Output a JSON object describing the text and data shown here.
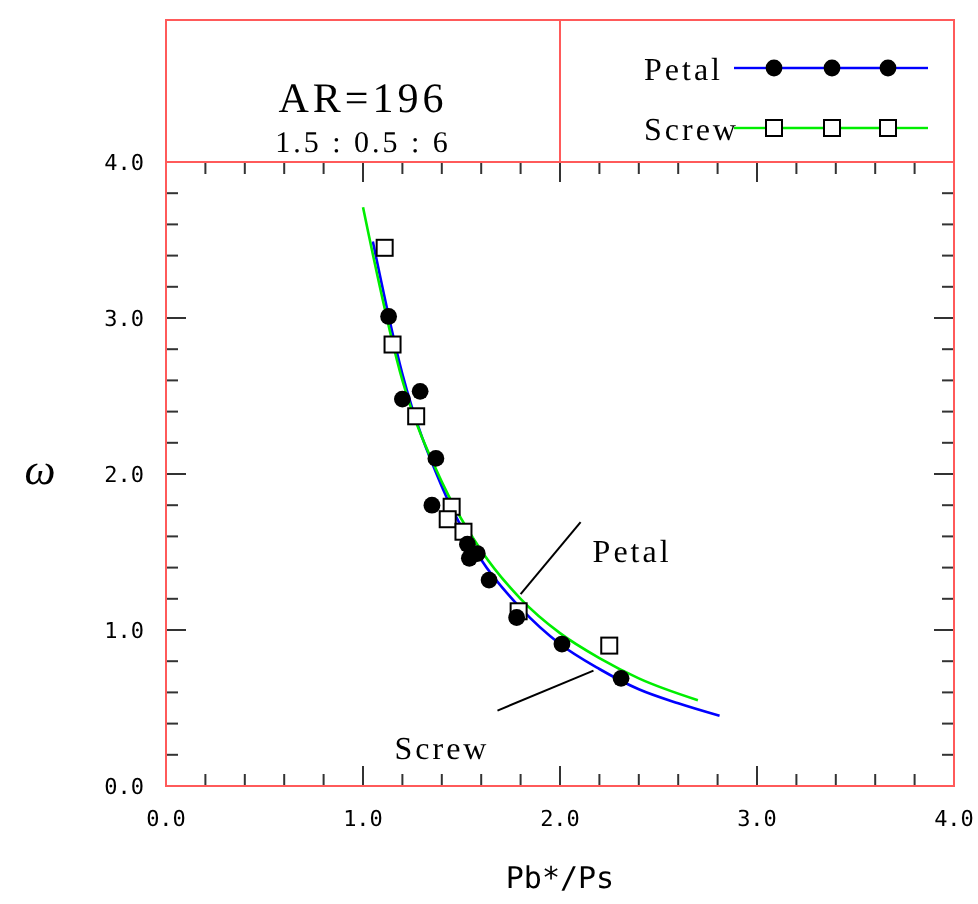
{
  "chart_data": {
    "type": "line",
    "title": "AR=196",
    "subtitle": "1.5 : 0.5 : 6",
    "xlabel": "Pb*/Ps",
    "ylabel": "ω",
    "xlim": [
      0,
      4
    ],
    "ylim": [
      0,
      4
    ],
    "xticks": [
      {
        "value": 0,
        "label": "0.0"
      },
      {
        "value": 0.2,
        "label": null
      },
      {
        "value": 0.4,
        "label": null
      },
      {
        "value": 0.6,
        "label": null
      },
      {
        "value": 0.8,
        "label": null
      },
      {
        "value": 1,
        "label": "1.0"
      },
      {
        "value": 1.2,
        "label": null
      },
      {
        "value": 1.4,
        "label": null
      },
      {
        "value": 1.6,
        "label": null
      },
      {
        "value": 1.8,
        "label": null
      },
      {
        "value": 2,
        "label": "2.0"
      },
      {
        "value": 2.2,
        "label": null
      },
      {
        "value": 2.4,
        "label": null
      },
      {
        "value": 2.6,
        "label": null
      },
      {
        "value": 2.8,
        "label": null
      },
      {
        "value": 3,
        "label": "3.0"
      },
      {
        "value": 3.2,
        "label": null
      },
      {
        "value": 3.4,
        "label": null
      },
      {
        "value": 3.6,
        "label": null
      },
      {
        "value": 3.8,
        "label": null
      },
      {
        "value": 4,
        "label": "4.0"
      }
    ],
    "yticks": [
      {
        "value": 0,
        "label": "0.0"
      },
      {
        "value": 0.2,
        "label": null
      },
      {
        "value": 0.4,
        "label": null
      },
      {
        "value": 0.6,
        "label": null
      },
      {
        "value": 0.8,
        "label": null
      },
      {
        "value": 1,
        "label": "1.0"
      },
      {
        "value": 1.2,
        "label": null
      },
      {
        "value": 1.4,
        "label": null
      },
      {
        "value": 1.6,
        "label": null
      },
      {
        "value": 1.8,
        "label": null
      },
      {
        "value": 2,
        "label": "2.0"
      },
      {
        "value": 2.2,
        "label": null
      },
      {
        "value": 2.4,
        "label": null
      },
      {
        "value": 2.6,
        "label": null
      },
      {
        "value": 2.8,
        "label": null
      },
      {
        "value": 3,
        "label": "3.0"
      },
      {
        "value": 3.2,
        "label": null
      },
      {
        "value": 3.4,
        "label": null
      },
      {
        "value": 3.6,
        "label": null
      },
      {
        "value": 3.8,
        "label": null
      },
      {
        "value": 4,
        "label": "4.0"
      }
    ],
    "grid": false,
    "legend": "top right",
    "series": [
      {
        "name": "Petal",
        "color": "#0000ff",
        "x": [
          1.05,
          1.2,
          1.4,
          1.6,
          1.8,
          2.0,
          2.2,
          2.4,
          2.6,
          2.81
        ],
        "values": [
          3.49,
          2.64,
          1.92,
          1.45,
          1.14,
          0.91,
          0.75,
          0.62,
          0.53,
          0.45
        ]
      },
      {
        "name": "Screw",
        "color": "#00ee00",
        "x": [
          1.0,
          1.2,
          1.4,
          1.6,
          1.8,
          2.0,
          2.2,
          2.4,
          2.7
        ],
        "values": [
          3.71,
          2.6,
          1.95,
          1.51,
          1.2,
          0.98,
          0.82,
          0.69,
          0.55
        ]
      },
      {
        "type": "scatter",
        "marker": "circle",
        "color": "#000000",
        "x": [
          1.13,
          1.2,
          1.29,
          1.37,
          1.35,
          1.53,
          1.54,
          1.58,
          1.64,
          1.78,
          2.01,
          2.31
        ],
        "values": [
          3.01,
          2.48,
          2.53,
          2.1,
          1.8,
          1.55,
          1.46,
          1.49,
          1.32,
          1.08,
          0.91,
          0.69
        ]
      },
      {
        "type": "scatter",
        "marker": "square",
        "color": "#000000",
        "x": [
          1.11,
          1.15,
          1.27,
          1.45,
          1.43,
          1.51,
          1.79,
          2.25
        ],
        "values": [
          3.45,
          2.83,
          2.37,
          1.79,
          1.71,
          1.63,
          1.12,
          0.9
        ]
      }
    ],
    "annotations": [
      {
        "text": "Petal",
        "x": 1.8,
        "y": 1.23
      },
      {
        "text": "Screw",
        "x": 2.17,
        "y": 0.74
      }
    ]
  }
}
